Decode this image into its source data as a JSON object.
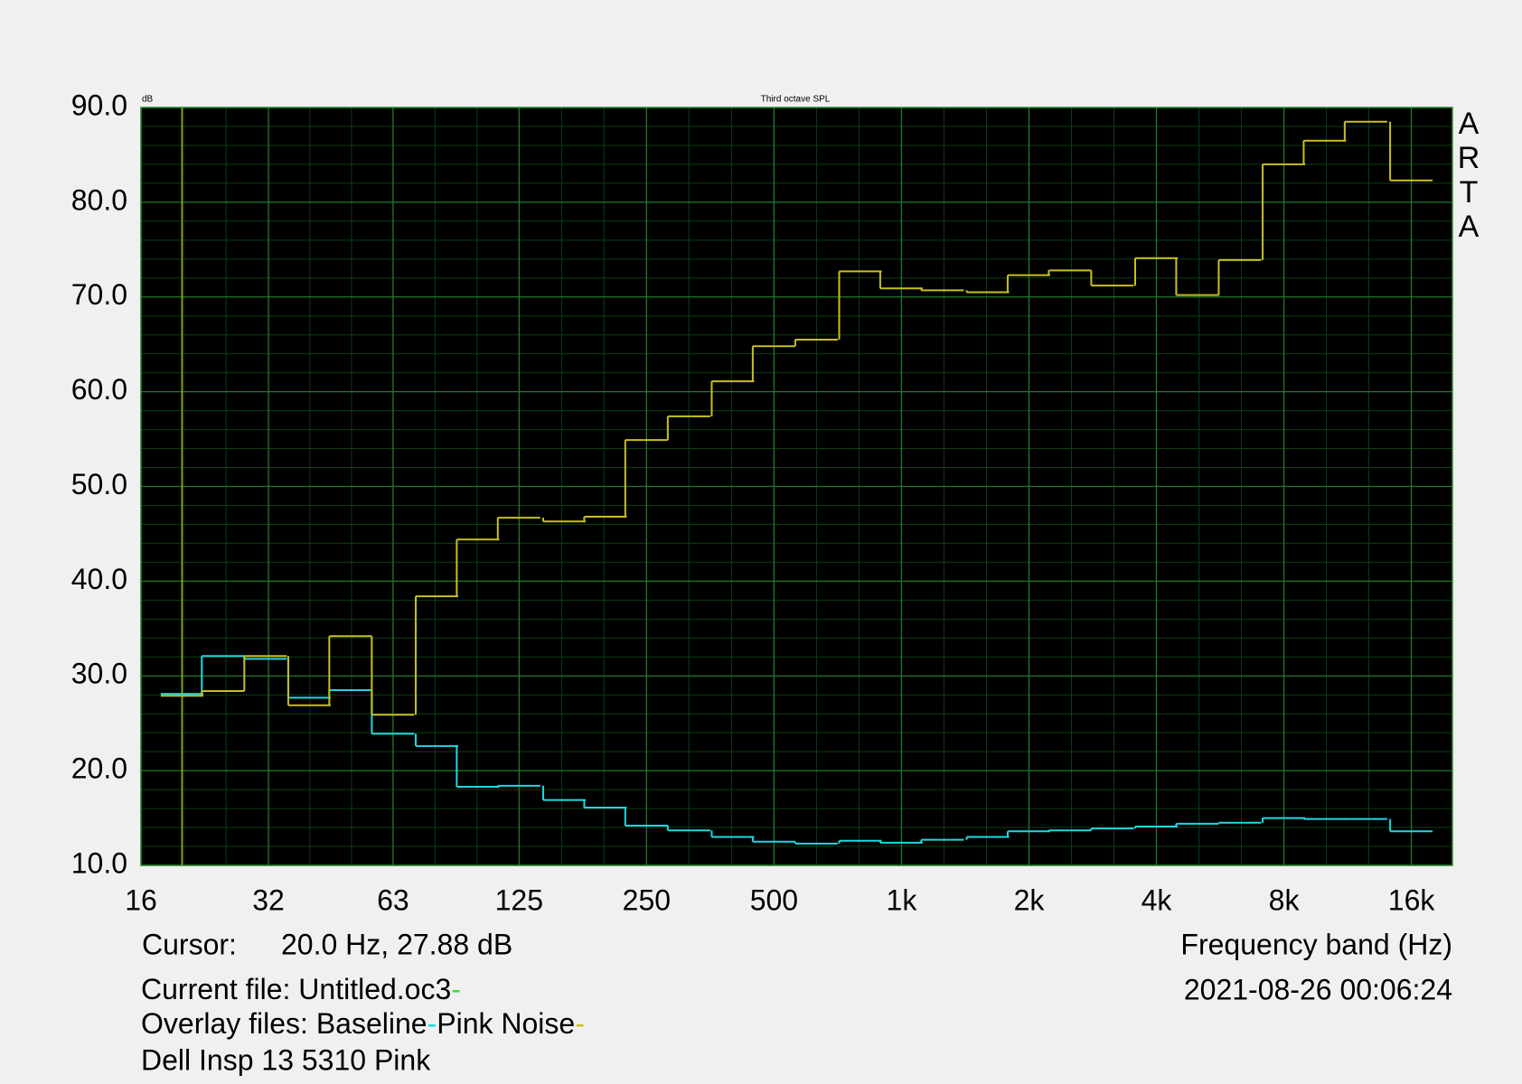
{
  "chart_data": {
    "type": "step",
    "title": "Third octave SPL",
    "y_unit": "dB",
    "watermark": "ARTA",
    "x_label": "Frequency band (Hz)",
    "timestamp": "2021-08-26  00:06:24",
    "log_x": true,
    "grid": true,
    "xlim": [
      16,
      20000
    ],
    "xticks": [
      16,
      32,
      63,
      125,
      250,
      500,
      {
        "value": 1000,
        "label": "1k"
      },
      {
        "value": 2000,
        "label": "2k"
      },
      {
        "value": 4000,
        "label": "4k"
      },
      {
        "value": 8000,
        "label": "8k"
      },
      {
        "value": 16000,
        "label": "16k"
      }
    ],
    "ylim": [
      10,
      90
    ],
    "yticks": [
      {
        "value": 10,
        "label": "10.0"
      },
      {
        "value": 20,
        "label": "20.0"
      },
      {
        "value": 30,
        "label": "30.0"
      },
      {
        "value": 40,
        "label": "40.0"
      },
      {
        "value": 50,
        "label": "50.0"
      },
      {
        "value": 60,
        "label": "60.0"
      },
      {
        "value": 70,
        "label": "70.0"
      },
      {
        "value": 80,
        "label": "80.0"
      },
      {
        "value": 90,
        "label": "90.0"
      }
    ],
    "x": [
      20,
      25,
      31.5,
      40,
      50,
      63,
      80,
      100,
      125,
      160,
      200,
      250,
      315,
      400,
      500,
      630,
      800,
      1000,
      1250,
      1600,
      2000,
      2500,
      3150,
      4000,
      5000,
      6300,
      8000,
      10000,
      12500,
      16000
    ],
    "series": [
      {
        "name": "Baseline",
        "color": "#20d8e0",
        "values": [
          28.1,
          32.1,
          31.8,
          27.7,
          28.5,
          23.9,
          22.6,
          18.3,
          18.4,
          16.9,
          16.1,
          14.2,
          13.7,
          13.0,
          12.5,
          12.3,
          12.6,
          12.4,
          12.7,
          13.0,
          13.6,
          13.7,
          13.9,
          14.1,
          14.4,
          14.5,
          15.0,
          14.9,
          14.9,
          13.6
        ]
      },
      {
        "name": "Pink Noise",
        "color": "#c8c020",
        "values": [
          27.9,
          28.4,
          32.1,
          26.9,
          34.2,
          25.9,
          38.4,
          44.4,
          46.7,
          46.3,
          46.8,
          54.9,
          57.4,
          61.1,
          64.8,
          65.5,
          72.7,
          70.9,
          70.7,
          70.5,
          72.3,
          72.8,
          71.2,
          74.1,
          70.2,
          73.9,
          84.0,
          86.5,
          88.5,
          82.3
        ]
      }
    ],
    "cursor": {
      "label": "Cursor:",
      "text": "20.0 Hz, 27.88 dB",
      "x": 20,
      "color": "#b8b000"
    },
    "current_file": {
      "label": "Current file:",
      "name": "Untitled.oc3",
      "color": "#30e030"
    },
    "overlay_label": "Overlay files:",
    "note": "Dell Insp 13 5310 Pink"
  }
}
